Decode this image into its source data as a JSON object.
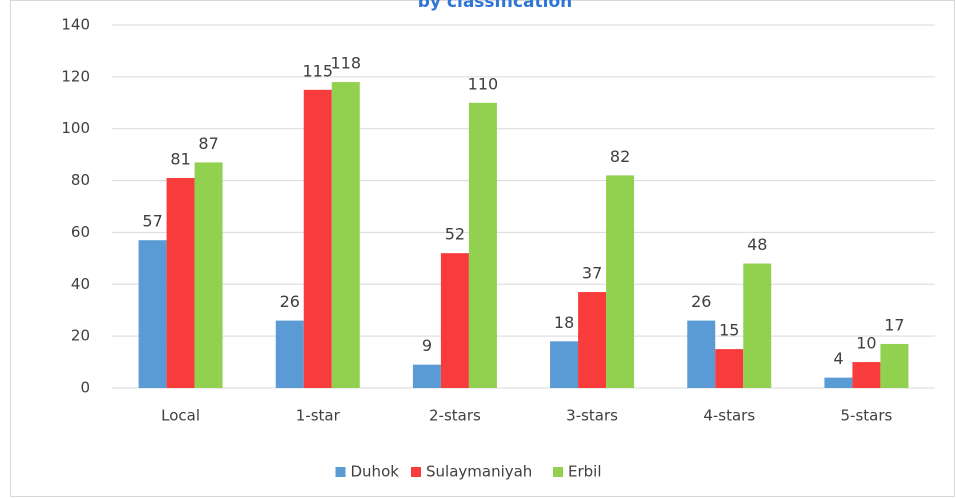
{
  "chart_data": {
    "type": "bar",
    "title": "by classification",
    "categories": [
      "Local",
      "1-star",
      "2-stars",
      "3-stars",
      "4-stars",
      "5-stars"
    ],
    "series": [
      {
        "name": "Duhok",
        "color": "#5b9bd5",
        "values": [
          57,
          26,
          9,
          18,
          26,
          4
        ]
      },
      {
        "name": "Sulaymaniyah",
        "color": "#f83b3b",
        "values": [
          81,
          115,
          52,
          37,
          15,
          10
        ]
      },
      {
        "name": "Erbil",
        "color": "#92d050",
        "values": [
          87,
          118,
          110,
          82,
          48,
          17
        ]
      }
    ],
    "ylim": [
      0,
      140
    ],
    "yticks": [
      0,
      20,
      40,
      60,
      80,
      100,
      120,
      140
    ],
    "grid": true,
    "legend": "bottom"
  }
}
